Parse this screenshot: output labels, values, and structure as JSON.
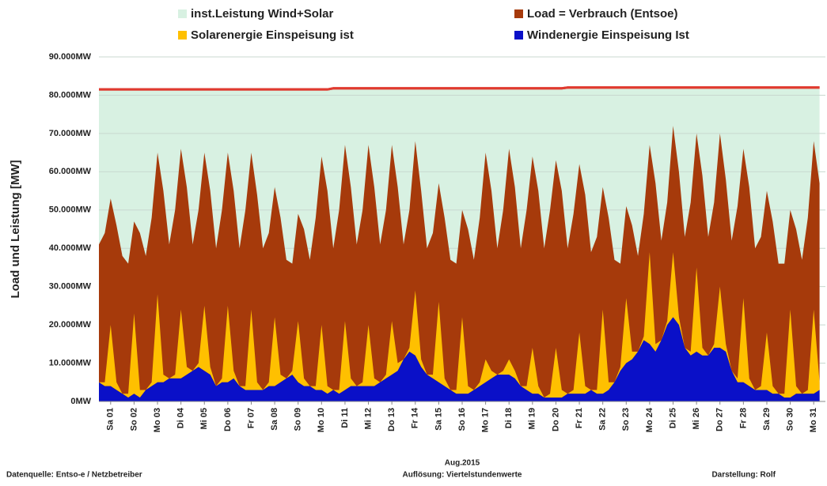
{
  "chart_data": {
    "type": "area",
    "y_label": "Load und Leistung [MW]",
    "x_label": "Aug.2015",
    "footer_left": "Datenquelle: Entso-e / Netzbetreiber",
    "footer_center": "Auflösung: Viertelstundenwerte",
    "footer_right": "Darstellung: Rolf",
    "grid": true,
    "xlim": [
      1,
      32
    ],
    "ylim": [
      0,
      90000
    ],
    "yticks": [
      {
        "value": 0,
        "label": "0MW"
      },
      {
        "value": 10000,
        "label": "10.000MW"
      },
      {
        "value": 20000,
        "label": "20.000MW"
      },
      {
        "value": 30000,
        "label": "30.000MW"
      },
      {
        "value": 40000,
        "label": "40.000MW"
      },
      {
        "value": 50000,
        "label": "50.000MW"
      },
      {
        "value": 60000,
        "label": "60.000MW"
      },
      {
        "value": 70000,
        "label": "70.000MW"
      },
      {
        "value": 80000,
        "label": "80.000MW"
      },
      {
        "value": 90000,
        "label": "90.000MW"
      }
    ],
    "xticks": [
      {
        "value": 1.5,
        "label": "Sa 01"
      },
      {
        "value": 2.5,
        "label": "So 02"
      },
      {
        "value": 3.5,
        "label": "Mo 03"
      },
      {
        "value": 4.5,
        "label": "Di 04"
      },
      {
        "value": 5.5,
        "label": "Mi 05"
      },
      {
        "value": 6.5,
        "label": "Do 06"
      },
      {
        "value": 7.5,
        "label": "Fr 07"
      },
      {
        "value": 8.5,
        "label": "Sa 08"
      },
      {
        "value": 9.5,
        "label": "So 09"
      },
      {
        "value": 10.5,
        "label": "Mo 10"
      },
      {
        "value": 11.5,
        "label": "Di 11"
      },
      {
        "value": 12.5,
        "label": "Mi 12"
      },
      {
        "value": 13.5,
        "label": "Do 13"
      },
      {
        "value": 14.5,
        "label": "Fr 14"
      },
      {
        "value": 15.5,
        "label": "Sa 15"
      },
      {
        "value": 16.5,
        "label": "So 16"
      },
      {
        "value": 17.5,
        "label": "Mo 17"
      },
      {
        "value": 18.5,
        "label": "Di 18"
      },
      {
        "value": 19.5,
        "label": "Mi 19"
      },
      {
        "value": 20.5,
        "label": "Do 20"
      },
      {
        "value": 21.5,
        "label": "Fr 21"
      },
      {
        "value": 22.5,
        "label": "Sa 22"
      },
      {
        "value": 23.5,
        "label": "So 23"
      },
      {
        "value": 24.5,
        "label": "Mo 24"
      },
      {
        "value": 25.5,
        "label": "Di 25"
      },
      {
        "value": 26.5,
        "label": "Mi 26"
      },
      {
        "value": 27.5,
        "label": "Do 27"
      },
      {
        "value": 28.5,
        "label": "Fr 28"
      },
      {
        "value": 29.5,
        "label": "Sa 29"
      },
      {
        "value": 30.5,
        "label": "So 30"
      },
      {
        "value": 31.5,
        "label": "Mo 31"
      }
    ],
    "x": [
      1,
      1.25,
      1.5,
      1.75,
      2,
      2.25,
      2.5,
      2.75,
      3,
      3.25,
      3.5,
      3.75,
      4,
      4.25,
      4.5,
      4.75,
      5,
      5.25,
      5.5,
      5.75,
      6,
      6.25,
      6.5,
      6.75,
      7,
      7.25,
      7.5,
      7.75,
      8,
      8.25,
      8.5,
      8.75,
      9,
      9.25,
      9.5,
      9.75,
      10,
      10.25,
      10.5,
      10.75,
      11,
      11.25,
      11.5,
      11.75,
      12,
      12.25,
      12.5,
      12.75,
      13,
      13.25,
      13.5,
      13.75,
      14,
      14.25,
      14.5,
      14.75,
      15,
      15.25,
      15.5,
      15.75,
      16,
      16.25,
      16.5,
      16.75,
      17,
      17.25,
      17.5,
      17.75,
      18,
      18.25,
      18.5,
      18.75,
      19,
      19.25,
      19.5,
      19.75,
      20,
      20.25,
      20.5,
      20.75,
      21,
      21.25,
      21.5,
      21.75,
      22,
      22.25,
      22.5,
      22.75,
      23,
      23.25,
      23.5,
      23.75,
      24,
      24.25,
      24.5,
      24.75,
      25,
      25.25,
      25.5,
      25.75,
      26,
      26.25,
      26.5,
      26.75,
      27,
      27.25,
      27.5,
      27.75,
      28,
      28.25,
      28.5,
      28.75,
      29,
      29.25,
      29.5,
      29.75,
      30,
      30.25,
      30.5,
      30.75,
      31,
      31.25,
      31.5,
      31.75
    ],
    "series": [
      {
        "name": "inst.Leistung Wind+Solar",
        "color": "#d8f1e2",
        "line_color": "#e03a2f",
        "values": [
          81500,
          81500,
          81500,
          81500,
          81500,
          81500,
          81500,
          81500,
          81500,
          81500,
          81500,
          81500,
          81500,
          81500,
          81500,
          81500,
          81500,
          81500,
          81500,
          81500,
          81500,
          81500,
          81500,
          81500,
          81500,
          81500,
          81500,
          81500,
          81500,
          81500,
          81500,
          81500,
          81500,
          81500,
          81500,
          81500,
          81500,
          81500,
          81500,
          81500,
          81800,
          81800,
          81800,
          81800,
          81800,
          81800,
          81800,
          81800,
          81800,
          81800,
          81800,
          81800,
          81800,
          81800,
          81800,
          81800,
          81800,
          81800,
          81800,
          81800,
          81800,
          81800,
          81800,
          81800,
          81800,
          81800,
          81800,
          81800,
          81800,
          81800,
          81800,
          81800,
          81800,
          81800,
          81800,
          81800,
          81800,
          81800,
          81800,
          81800,
          82000,
          82000,
          82000,
          82000,
          82000,
          82000,
          82000,
          82000,
          82000,
          82000,
          82000,
          82000,
          82000,
          82000,
          82000,
          82000,
          82000,
          82000,
          82000,
          82000,
          82000,
          82000,
          82000,
          82000,
          82000,
          82000,
          82000,
          82000,
          82000,
          82000,
          82000,
          82000,
          82000,
          82000,
          82000,
          82000,
          82000,
          82000,
          82000,
          82000,
          82000,
          82000,
          82000,
          82000
        ]
      },
      {
        "name": "Load =  Verbrauch (Entsoe)",
        "color": "#a63a0b",
        "values": [
          41000,
          44000,
          53000,
          46000,
          38000,
          36000,
          47000,
          44000,
          38000,
          48000,
          65000,
          55000,
          41000,
          50000,
          66000,
          56000,
          41000,
          50000,
          65000,
          55000,
          40000,
          50000,
          65000,
          55000,
          40000,
          50000,
          65000,
          54000,
          40000,
          44000,
          56000,
          48000,
          37000,
          36000,
          49000,
          45000,
          37000,
          48000,
          64000,
          55000,
          40000,
          50000,
          67000,
          56000,
          41000,
          50000,
          67000,
          56000,
          41000,
          50000,
          67000,
          56000,
          41000,
          50000,
          68000,
          55000,
          40000,
          44000,
          57000,
          48000,
          37000,
          36000,
          50000,
          45000,
          37000,
          48000,
          65000,
          55000,
          40000,
          50000,
          66000,
          56000,
          40000,
          50000,
          64000,
          55000,
          40000,
          50000,
          63000,
          55000,
          40000,
          49000,
          62000,
          54000,
          39000,
          43000,
          56000,
          48000,
          37000,
          36000,
          51000,
          46000,
          38000,
          49000,
          67000,
          57000,
          42000,
          52000,
          72000,
          60000,
          43000,
          52000,
          70000,
          59000,
          43000,
          52000,
          70000,
          58000,
          42000,
          51000,
          66000,
          56000,
          40000,
          43000,
          55000,
          47000,
          36000,
          36000,
          50000,
          45000,
          37000,
          48000,
          68000,
          57000
        ]
      },
      {
        "name": "Solarenergie Einspeisung ist",
        "color": "#ffc000",
        "stacked": true,
        "values": [
          0,
          1000,
          16000,
          2000,
          0,
          1000,
          21000,
          2000,
          0,
          1000,
          23000,
          2000,
          0,
          1000,
          18000,
          2000,
          0,
          1000,
          17000,
          2000,
          0,
          1000,
          20000,
          2000,
          0,
          1000,
          21000,
          2000,
          0,
          1000,
          18000,
          2000,
          0,
          1000,
          16000,
          2000,
          0,
          1000,
          17000,
          2000,
          0,
          1000,
          18000,
          2000,
          0,
          1000,
          16000,
          2000,
          0,
          1000,
          14000,
          2000,
          0,
          1000,
          17000,
          2000,
          0,
          1000,
          21000,
          2000,
          0,
          1000,
          20000,
          2000,
          0,
          1000,
          6000,
          2000,
          0,
          1000,
          4000,
          2000,
          0,
          1000,
          12000,
          2000,
          0,
          1000,
          13000,
          2000,
          0,
          1000,
          16000,
          2000,
          0,
          1000,
          22000,
          2000,
          0,
          1000,
          17000,
          2000,
          0,
          1000,
          24000,
          2000,
          0,
          1000,
          17000,
          2000,
          0,
          1000,
          22000,
          2000,
          0,
          1000,
          16000,
          2000,
          0,
          1000,
          22000,
          2000,
          0,
          1000,
          15000,
          2000,
          0,
          1000,
          23000,
          2000,
          0,
          1000,
          22000,
          2000
        ]
      },
      {
        "name": "Windenergie Einspeisung Ist",
        "color": "#0a10c8",
        "stacked": true,
        "values": [
          5000,
          4000,
          4000,
          3000,
          2000,
          1000,
          2000,
          1000,
          3000,
          4000,
          5000,
          5000,
          6000,
          6000,
          6000,
          7000,
          8000,
          9000,
          8000,
          7000,
          4000,
          5000,
          5000,
          6000,
          4000,
          3000,
          3000,
          3000,
          3000,
          4000,
          4000,
          5000,
          6000,
          7000,
          5000,
          4000,
          4000,
          3000,
          3000,
          2000,
          3000,
          2000,
          3000,
          4000,
          4000,
          4000,
          4000,
          4000,
          5000,
          6000,
          7000,
          8000,
          11000,
          13000,
          12000,
          9000,
          7000,
          6000,
          5000,
          4000,
          3000,
          2000,
          2000,
          2000,
          3000,
          4000,
          5000,
          6000,
          7000,
          7000,
          7000,
          6000,
          4000,
          3000,
          2000,
          2000,
          1000,
          1000,
          1000,
          1000,
          2000,
          2000,
          2000,
          2000,
          3000,
          2000,
          2000,
          3000,
          5000,
          8000,
          10000,
          11000,
          13000,
          16000,
          15000,
          13000,
          16000,
          20000,
          22000,
          20000,
          14000,
          12000,
          13000,
          12000,
          12000,
          14000,
          14000,
          13000,
          8000,
          5000,
          5000,
          4000,
          3000,
          3000,
          3000,
          2000,
          2000,
          1000,
          1000,
          2000,
          2000,
          2000,
          2000,
          3000
        ]
      }
    ]
  }
}
